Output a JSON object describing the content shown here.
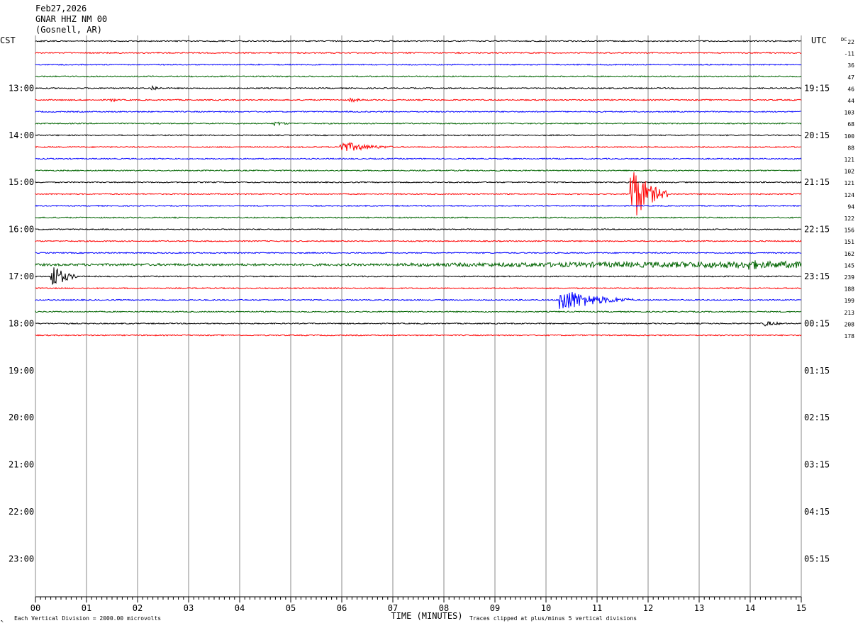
{
  "header": {
    "date": "Feb27,2026",
    "station": "GNAR HHZ NM 00",
    "location": "(Gosnell, AR)"
  },
  "labels": {
    "left_tz": "CST",
    "right_tz": "UTC",
    "dc_label": "DC",
    "x_axis_title": "TIME (MINUTES)",
    "scale_note": "Each Vertical Division = 2000.00 microvolts",
    "clip_note": "Traces clipped at plus/minus 5 vertical divisions"
  },
  "chart_data": {
    "type": "line",
    "title": "",
    "xlabel": "TIME (MINUTES)",
    "xlim": [
      0,
      15
    ],
    "x_ticks": [
      "00",
      "01",
      "02",
      "03",
      "04",
      "05",
      "06",
      "07",
      "08",
      "09",
      "10",
      "11",
      "12",
      "13",
      "14",
      "15"
    ],
    "rows_total": 48,
    "rows_per_hour": 4,
    "minutes_per_row": 15,
    "hour_labels_left": [
      "13:00",
      "14:00",
      "15:00",
      "16:00",
      "17:00",
      "18:00",
      "19:00",
      "20:00",
      "21:00",
      "22:00",
      "23:00"
    ],
    "hour_labels_right": [
      "19:15",
      "20:15",
      "21:15",
      "22:15",
      "23:15",
      "00:15",
      "01:15",
      "02:15",
      "03:15",
      "04:15",
      "05:15"
    ],
    "first_hour_row": 4,
    "dc_offsets": [
      "22",
      "-11",
      "36",
      "47",
      "46",
      "44",
      "103",
      "68",
      "100",
      "88",
      "121",
      "102",
      "121",
      "124",
      "94",
      "122",
      "156",
      "151",
      "162",
      "145",
      "239",
      "188",
      "199",
      "213",
      "208",
      "178"
    ],
    "trace_colors": [
      "#000000",
      "#ff0000",
      "#0000ff",
      "#006400"
    ],
    "traces_drawn": 26,
    "events": [
      {
        "row": 4,
        "minute": 2.3,
        "amplitude": 4,
        "duration": 0.3
      },
      {
        "row": 5,
        "minute": 1.5,
        "amplitude": 3,
        "duration": 0.3
      },
      {
        "row": 5,
        "minute": 6.2,
        "amplitude": 3,
        "duration": 0.5
      },
      {
        "row": 7,
        "minute": 4.7,
        "amplitude": 3,
        "duration": 0.6
      },
      {
        "row": 9,
        "minute": 6.0,
        "amplitude": 8,
        "duration": 1.2
      },
      {
        "row": 13,
        "minute": 11.7,
        "amplitude": 40,
        "duration": 0.7
      },
      {
        "row": 19,
        "minute": 14.0,
        "amplitude": 8,
        "duration": 1.0
      },
      {
        "row": 20,
        "minute": 0.35,
        "amplitude": 18,
        "duration": 0.5
      },
      {
        "row": 22,
        "minute": 10.3,
        "amplitude": 18,
        "duration": 1.4
      },
      {
        "row": 24,
        "minute": 14.3,
        "amplitude": 4,
        "duration": 0.6
      }
    ]
  }
}
